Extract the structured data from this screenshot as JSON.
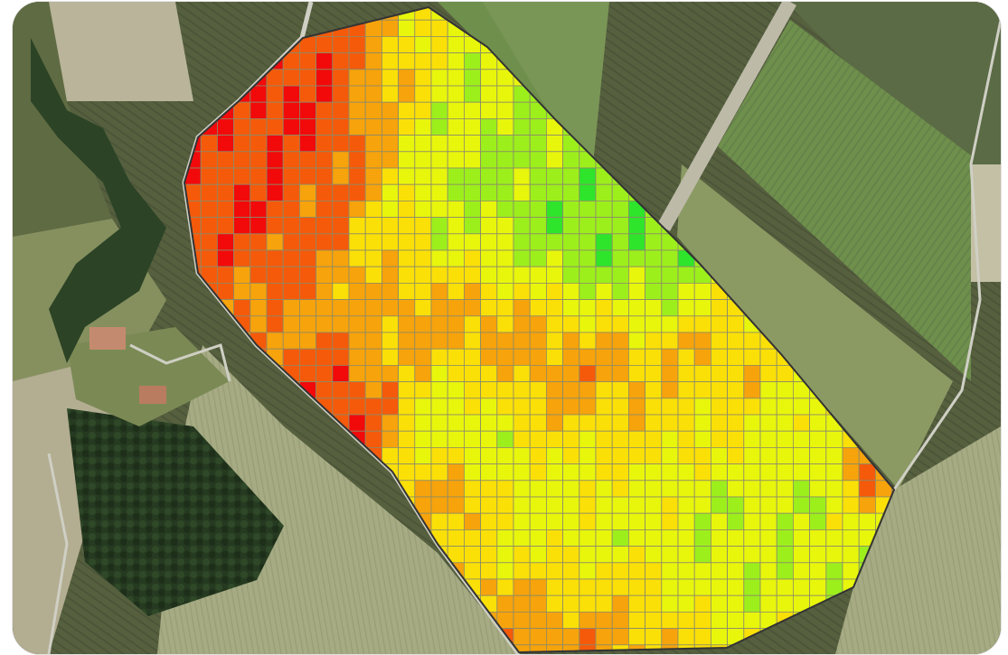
{
  "map": {
    "kind": "aerial-field-zone-map",
    "scale_colors": [
      "#f20a0a",
      "#f55a0a",
      "#f7a30b",
      "#fbe007",
      "#e8f60c",
      "#9def1c",
      "#2ee52b"
    ],
    "scale_order": "low-to-high",
    "landscape_colors": {
      "field_dark": "#56603f",
      "field_green": "#6f8f4c",
      "field_light": "#a6ab84",
      "field_pale": "#b9b49a",
      "forest": "#253a20",
      "road": "#cfcfc4",
      "boundary": "#333333"
    }
  }
}
